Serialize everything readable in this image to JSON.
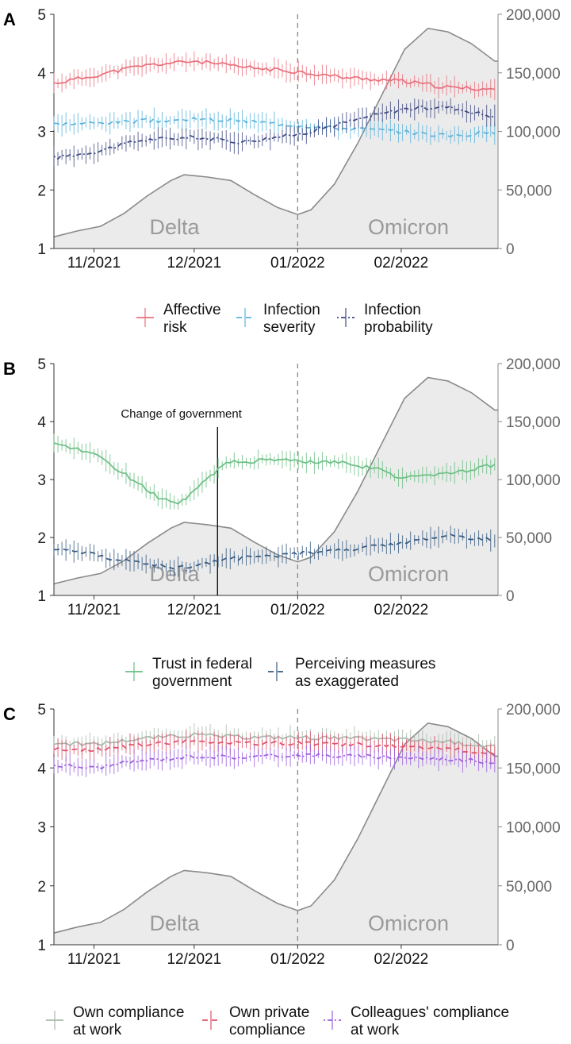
{
  "chart_data": [
    {
      "panel": "A",
      "type": "line",
      "x_ticks": [
        "11/2021",
        "12/2021",
        "01/2022",
        "02/2022"
      ],
      "y_ticks": [
        "1",
        "2",
        "3",
        "4",
        "5"
      ],
      "y2_ticks": [
        "0",
        "50,000",
        "100,000",
        "150,000",
        "200,000"
      ],
      "ylim": [
        1,
        5
      ],
      "y2lim": [
        0,
        200000
      ],
      "vline_label": "01/2022",
      "waves": [
        "Delta",
        "Omicron"
      ],
      "cases_area": {
        "x": [
          "2021-10-20",
          "2021-10-27",
          "2021-11-03",
          "2021-11-10",
          "2021-11-17",
          "2021-11-24",
          "2021-11-28",
          "2021-12-05",
          "2021-12-12",
          "2021-12-19",
          "2021-12-26",
          "2022-01-01",
          "2022-01-05",
          "2022-01-12",
          "2022-01-19",
          "2022-01-26",
          "2022-02-02",
          "2022-02-09",
          "2022-02-15",
          "2022-02-22",
          "2022-03-01"
        ],
        "values": [
          10000,
          15000,
          19000,
          30000,
          45000,
          58000,
          63000,
          61000,
          58000,
          46000,
          35000,
          29000,
          33000,
          55000,
          90000,
          130000,
          170000,
          188000,
          185000,
          175000,
          160000
        ]
      },
      "series": [
        {
          "name": "Affective risk",
          "color": "#e8707c",
          "dash": "solid",
          "x": [
            "2021-10-20",
            "2021-11-01",
            "2021-11-15",
            "2021-12-01",
            "2021-12-15",
            "2022-01-01",
            "2022-01-15",
            "2022-02-01",
            "2022-02-15",
            "2022-03-01"
          ],
          "values": [
            3.82,
            3.95,
            4.12,
            4.2,
            4.1,
            4.02,
            3.92,
            3.86,
            3.75,
            3.72
          ]
        },
        {
          "name": "Infection severity",
          "color": "#5ab4dc",
          "dash": "dashed",
          "x": [
            "2021-10-20",
            "2021-11-01",
            "2021-11-15",
            "2021-12-01",
            "2021-12-15",
            "2022-01-01",
            "2022-01-15",
            "2022-02-01",
            "2022-02-15",
            "2022-03-01"
          ],
          "values": [
            3.12,
            3.14,
            3.18,
            3.2,
            3.18,
            3.1,
            3.05,
            3.0,
            2.92,
            2.98
          ]
        },
        {
          "name": "Infection probability",
          "color": "#3f4a82",
          "dash": "dotdash",
          "x": [
            "2021-10-20",
            "2021-11-01",
            "2021-11-15",
            "2021-12-01",
            "2021-12-15",
            "2022-01-01",
            "2022-01-15",
            "2022-02-01",
            "2022-02-15",
            "2022-03-01"
          ],
          "values": [
            2.55,
            2.65,
            2.85,
            2.9,
            2.82,
            2.95,
            3.15,
            3.38,
            3.42,
            3.25
          ]
        }
      ],
      "legend": [
        "Affective\nrisk",
        "Infection\nseverity",
        "Infection\nprobability"
      ]
    },
    {
      "panel": "B",
      "type": "line",
      "x_ticks": [
        "11/2021",
        "12/2021",
        "01/2022",
        "02/2022"
      ],
      "y_ticks": [
        "1",
        "2",
        "3",
        "4",
        "5"
      ],
      "y2_ticks": [
        "0",
        "50,000",
        "100,000",
        "150,000",
        "200,000"
      ],
      "ylim": [
        1,
        5
      ],
      "y2lim": [
        0,
        200000
      ],
      "vline_label": "01/2022",
      "annotation": "Change of government",
      "annotation_x": "2021-12-08",
      "waves": [
        "Delta",
        "Omicron"
      ],
      "cases_area": {
        "x": [
          "2021-10-20",
          "2021-10-27",
          "2021-11-03",
          "2021-11-10",
          "2021-11-17",
          "2021-11-24",
          "2021-11-28",
          "2021-12-05",
          "2021-12-12",
          "2021-12-19",
          "2021-12-26",
          "2022-01-01",
          "2022-01-05",
          "2022-01-12",
          "2022-01-19",
          "2022-01-26",
          "2022-02-02",
          "2022-02-09",
          "2022-02-15",
          "2022-02-22",
          "2022-03-01"
        ],
        "values": [
          10000,
          15000,
          19000,
          30000,
          45000,
          58000,
          63000,
          61000,
          58000,
          46000,
          35000,
          29000,
          33000,
          55000,
          90000,
          130000,
          170000,
          188000,
          185000,
          175000,
          160000
        ]
      },
      "series": [
        {
          "name": "Trust in federal government",
          "color": "#6cbf84",
          "dash": "solid",
          "x": [
            "2021-10-20",
            "2021-11-01",
            "2021-11-10",
            "2021-11-20",
            "2021-11-27",
            "2021-12-05",
            "2021-12-10",
            "2021-12-20",
            "2022-01-01",
            "2022-01-15",
            "2022-01-25",
            "2022-02-01",
            "2022-02-15",
            "2022-03-01"
          ],
          "values": [
            3.6,
            3.45,
            3.1,
            2.7,
            2.6,
            3.0,
            3.3,
            3.32,
            3.33,
            3.28,
            3.18,
            3.03,
            3.1,
            3.25
          ]
        },
        {
          "name": "Perceiving measures as exaggerated",
          "color": "#355a80",
          "dash": "dashed",
          "x": [
            "2021-10-20",
            "2021-11-01",
            "2021-11-15",
            "2021-11-27",
            "2021-12-10",
            "2022-01-01",
            "2022-01-15",
            "2022-02-01",
            "2022-02-15",
            "2022-03-01"
          ],
          "values": [
            1.82,
            1.7,
            1.55,
            1.48,
            1.62,
            1.72,
            1.78,
            1.9,
            2.03,
            1.95
          ]
        }
      ],
      "legend": [
        "Trust in federal\ngovernment",
        "Perceiving measures\nas exaggerated"
      ]
    },
    {
      "panel": "C",
      "type": "line",
      "x_ticks": [
        "11/2021",
        "12/2021",
        "01/2022",
        "02/2022"
      ],
      "y_ticks": [
        "1",
        "2",
        "3",
        "4",
        "5"
      ],
      "y2_ticks": [
        "0",
        "50,000",
        "100,000",
        "150,000",
        "200,000"
      ],
      "ylim": [
        1,
        5
      ],
      "y2lim": [
        0,
        200000
      ],
      "vline_label": "01/2022",
      "waves": [
        "Delta",
        "Omicron"
      ],
      "cases_area": {
        "x": [
          "2021-10-20",
          "2021-10-27",
          "2021-11-03",
          "2021-11-10",
          "2021-11-17",
          "2021-11-24",
          "2021-11-28",
          "2021-12-05",
          "2021-12-12",
          "2021-12-19",
          "2021-12-26",
          "2022-01-01",
          "2022-01-05",
          "2022-01-12",
          "2022-01-19",
          "2022-01-26",
          "2022-02-02",
          "2022-02-09",
          "2022-02-15",
          "2022-02-22",
          "2022-03-01"
        ],
        "values": [
          10000,
          15000,
          19000,
          30000,
          45000,
          58000,
          63000,
          61000,
          58000,
          46000,
          35000,
          29000,
          33000,
          55000,
          90000,
          130000,
          170000,
          188000,
          185000,
          175000,
          160000
        ]
      },
      "series": [
        {
          "name": "Own compliance at work",
          "color": "#a8b8ac",
          "dash": "solid",
          "x": [
            "2021-10-20",
            "2021-11-01",
            "2021-11-15",
            "2021-12-01",
            "2021-12-15",
            "2022-01-01",
            "2022-01-15",
            "2022-02-01",
            "2022-02-15",
            "2022-03-01"
          ],
          "values": [
            4.42,
            4.4,
            4.5,
            4.56,
            4.52,
            4.52,
            4.5,
            4.48,
            4.44,
            4.36
          ]
        },
        {
          "name": "Own private compliance",
          "color": "#e0506a",
          "dash": "dashed",
          "x": [
            "2021-10-20",
            "2021-11-01",
            "2021-11-15",
            "2021-12-01",
            "2021-12-15",
            "2022-01-01",
            "2022-01-15",
            "2022-02-01",
            "2022-02-15",
            "2022-03-01"
          ],
          "values": [
            4.32,
            4.3,
            4.4,
            4.46,
            4.42,
            4.42,
            4.4,
            4.38,
            4.34,
            4.22
          ]
        },
        {
          "name": "Colleagues' compliance at work",
          "color": "#9b5fe0",
          "dash": "dotdash",
          "x": [
            "2021-10-20",
            "2021-11-01",
            "2021-11-15",
            "2021-12-01",
            "2021-12-15",
            "2022-01-01",
            "2022-01-15",
            "2022-02-01",
            "2022-02-15",
            "2022-03-01"
          ],
          "values": [
            4.05,
            4.0,
            4.12,
            4.2,
            4.18,
            4.22,
            4.2,
            4.18,
            4.15,
            4.1
          ]
        }
      ],
      "legend": [
        "Own compliance\nat work",
        "Own private\ncompliance",
        "Colleagues' compliance\nat work"
      ]
    }
  ]
}
